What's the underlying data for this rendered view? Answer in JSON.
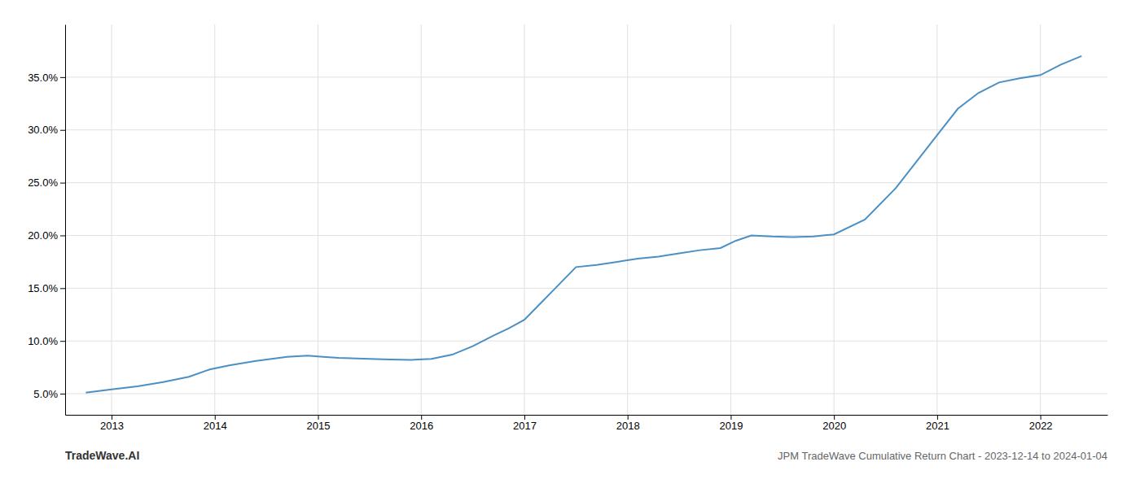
{
  "chart_data": {
    "type": "line",
    "title": "JPM TradeWave Cumulative Return Chart - 2023-12-14 to 2024-01-04",
    "annotations": [
      "TradeWave.AI"
    ],
    "color": "#4a90c4",
    "grid": true,
    "x": [
      2012.75,
      2013.0,
      2013.25,
      2013.5,
      2013.75,
      2013.95,
      2014.15,
      2014.4,
      2014.7,
      2014.9,
      2015.05,
      2015.2,
      2015.5,
      2015.7,
      2015.9,
      2016.1,
      2016.3,
      2016.5,
      2016.7,
      2016.85,
      2017.0,
      2017.15,
      2017.3,
      2017.5,
      2017.7,
      2017.9,
      2018.1,
      2018.3,
      2018.5,
      2018.7,
      2018.9,
      2019.05,
      2019.2,
      2019.4,
      2019.6,
      2019.8,
      2020.0,
      2020.3,
      2020.6,
      2020.8,
      2021.0,
      2021.2,
      2021.4,
      2021.6,
      2021.8,
      2022.0,
      2022.2,
      2022.4
    ],
    "values": [
      5.1,
      5.4,
      5.7,
      6.1,
      6.6,
      7.3,
      7.7,
      8.1,
      8.5,
      8.6,
      8.5,
      8.4,
      8.3,
      8.25,
      8.2,
      8.3,
      8.7,
      9.5,
      10.5,
      11.2,
      12.0,
      13.5,
      15.0,
      17.0,
      17.2,
      17.5,
      17.8,
      18.0,
      18.3,
      18.6,
      18.8,
      19.5,
      20.0,
      19.9,
      19.85,
      19.9,
      20.1,
      21.5,
      24.5,
      27.0,
      29.5,
      32.0,
      33.5,
      34.5,
      34.9,
      35.2,
      36.2,
      37.0
    ],
    "xlim": [
      2012.55,
      2022.65
    ],
    "xticks": [
      2013,
      2014,
      2015,
      2016,
      2017,
      2018,
      2019,
      2020,
      2021,
      2022
    ],
    "ylim": [
      3.0,
      40.0
    ],
    "yticks": [
      {
        "value": 5.0,
        "label": "5.0%"
      },
      {
        "value": 10.0,
        "label": "10.0%"
      },
      {
        "value": 15.0,
        "label": "15.0%"
      },
      {
        "value": 20.0,
        "label": "20.0%"
      },
      {
        "value": 25.0,
        "label": "25.0%"
      },
      {
        "value": 30.0,
        "label": "30.0%"
      },
      {
        "value": 35.0,
        "label": "35.0%"
      }
    ]
  }
}
